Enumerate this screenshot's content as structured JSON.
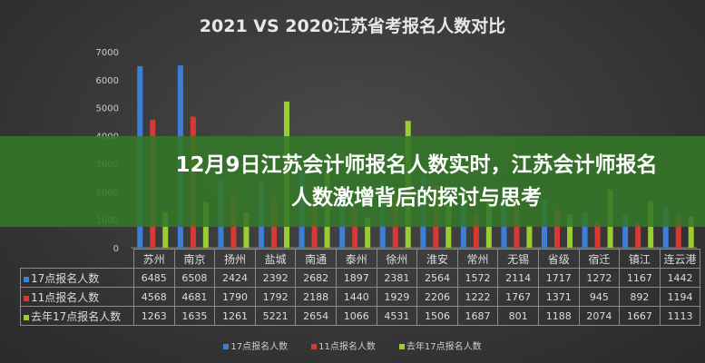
{
  "banner": {
    "line1": "12月9日江苏会计师报名人数实时，江苏会计师报名",
    "line2": "人数激增背后的探讨与思考"
  },
  "chart_data": {
    "type": "bar",
    "title": "2021 VS 2020江苏省考报名人数对比",
    "categories": [
      "苏州",
      "南京",
      "扬州",
      "盐城",
      "南通",
      "泰州",
      "徐州",
      "淮安",
      "常州",
      "无锡",
      "省级",
      "宿迁",
      "镇江",
      "连云港"
    ],
    "series": [
      {
        "name": "17点报名人数",
        "color": "#3d7fd6",
        "values": [
          6485,
          6508,
          2424,
          2392,
          2682,
          1897,
          2381,
          2564,
          1572,
          2114,
          1717,
          1272,
          1167,
          1442
        ]
      },
      {
        "name": "11点报名人数",
        "color": "#d63a32",
        "values": [
          4568,
          4681,
          1790,
          1792,
          2188,
          1440,
          1929,
          2206,
          1222,
          1767,
          1371,
          945,
          892,
          1194
        ]
      },
      {
        "name": "去年17点报名人数",
        "color": "#9acd32",
        "values": [
          1263,
          1635,
          1261,
          5221,
          2654,
          1066,
          4531,
          1506,
          1687,
          801,
          1188,
          2074,
          1667,
          1113
        ]
      }
    ],
    "ylim": [
      0,
      7000
    ],
    "yticks": [
      0,
      1000,
      2000,
      3000,
      4000,
      5000,
      6000,
      7000
    ],
    "grid": false,
    "legend": "bottom"
  }
}
